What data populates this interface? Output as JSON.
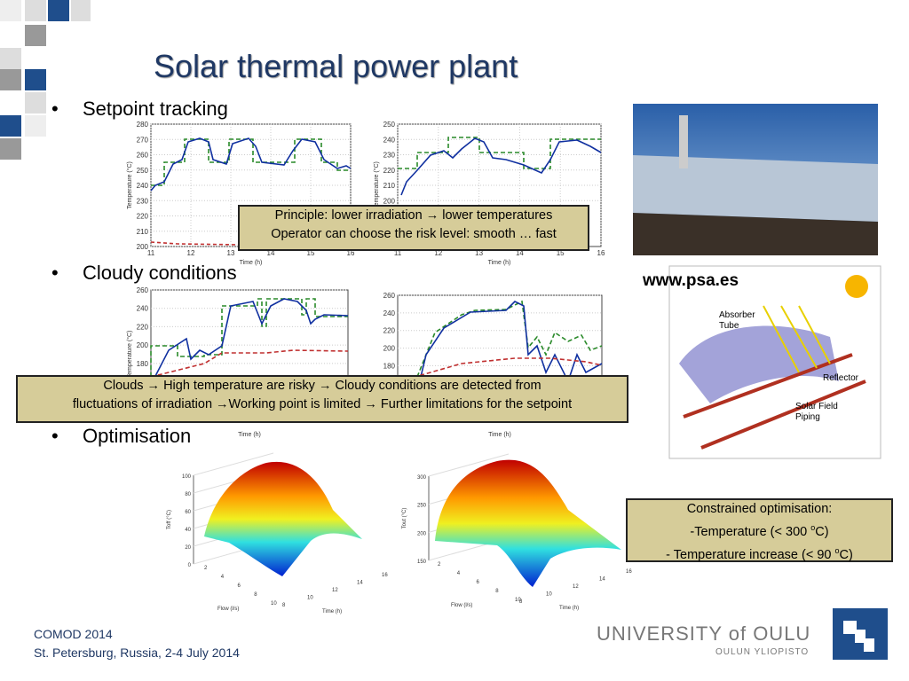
{
  "title": "Solar thermal power plant",
  "bullets": [
    "Setpoint tracking",
    "Cloudy conditions",
    "Optimisation"
  ],
  "callouts": {
    "principle": [
      "Principle: lower irradiation → lower temperatures",
      "Operator can choose the risk level: smooth … fast"
    ],
    "clouds": [
      "Clouds → High temperature are risky → Cloudy conditions are detected from",
      "fluctuations of irradiation →Working point is limited → Further limitations for the setpoint"
    ],
    "optimisation": {
      "heading": "Constrained optimisation:",
      "lines": [
        [
          "-Temperature (< 300 ",
          "o",
          "C)"
        ],
        [
          "- Temperature increase (< 90 ",
          "o",
          "C)"
        ]
      ]
    }
  },
  "source": "www.psa.es",
  "diagram": {
    "labels": [
      "Absorber",
      "Tube",
      "Reflector",
      "Solar Field",
      "Piping"
    ]
  },
  "footer": [
    "COMOD 2014",
    "St. Petersburg, Russia, 2-4 July 2014"
  ],
  "logo": {
    "name": "UNIVERSITY of OULU",
    "sub": "OULUN YLIOPISTO"
  },
  "plots": [
    {
      "type": "line",
      "ylabel": "Temperature (°C)",
      "xlabel": "Time (h)",
      "xlim": [
        11,
        16
      ],
      "xticks": [
        11,
        12,
        13,
        14,
        15,
        16
      ],
      "ylim": [
        200,
        280
      ],
      "yticks": [
        200,
        210,
        220,
        230,
        240,
        250,
        260,
        270,
        280
      ],
      "grid": true
    },
    {
      "type": "line",
      "ylabel": "Temperature (°C)",
      "xlabel": "Time (h)",
      "xlim": [
        11,
        16
      ],
      "xticks": [
        11,
        12,
        13,
        14,
        15,
        16
      ],
      "ylim": [
        170,
        250
      ],
      "yticks": [
        200,
        210,
        220,
        230,
        240,
        250
      ],
      "grid": true
    },
    {
      "type": "line",
      "ylabel": "Temperature (°C)",
      "xlabel": "Time (h)",
      "xlim": [
        11,
        16
      ],
      "xticks": [],
      "ylim": [
        120,
        260
      ],
      "yticks": [
        180,
        200,
        220,
        240,
        260
      ],
      "grid": true
    },
    {
      "type": "line",
      "xlabel": "Time (h)",
      "xlim": [
        11,
        16
      ],
      "xticks": [],
      "ylim": [
        120,
        260
      ],
      "yticks": [
        180,
        200,
        220,
        240,
        260
      ],
      "grid": true
    },
    {
      "type": "surface",
      "zlabel": "Toff (°C)",
      "xlabel": "Flow (l/s)",
      "ylabel": "Time (h)",
      "zlim": [
        0,
        100
      ],
      "zticks": [
        0,
        20,
        40,
        60,
        80,
        100
      ],
      "xticks": [
        2,
        4,
        6,
        8,
        10
      ],
      "yticks": [
        8,
        10,
        12,
        14,
        16
      ]
    },
    {
      "type": "surface",
      "zlabel": "Tout (°C)",
      "xlabel": "Flow (l/s)",
      "ylabel": "Time (h)",
      "zlim": [
        150,
        300
      ],
      "zticks": [
        150,
        200,
        250,
        300
      ],
      "xticks": [
        2,
        4,
        6,
        8,
        10
      ],
      "yticks": [
        8,
        10,
        12,
        14,
        16
      ]
    }
  ]
}
